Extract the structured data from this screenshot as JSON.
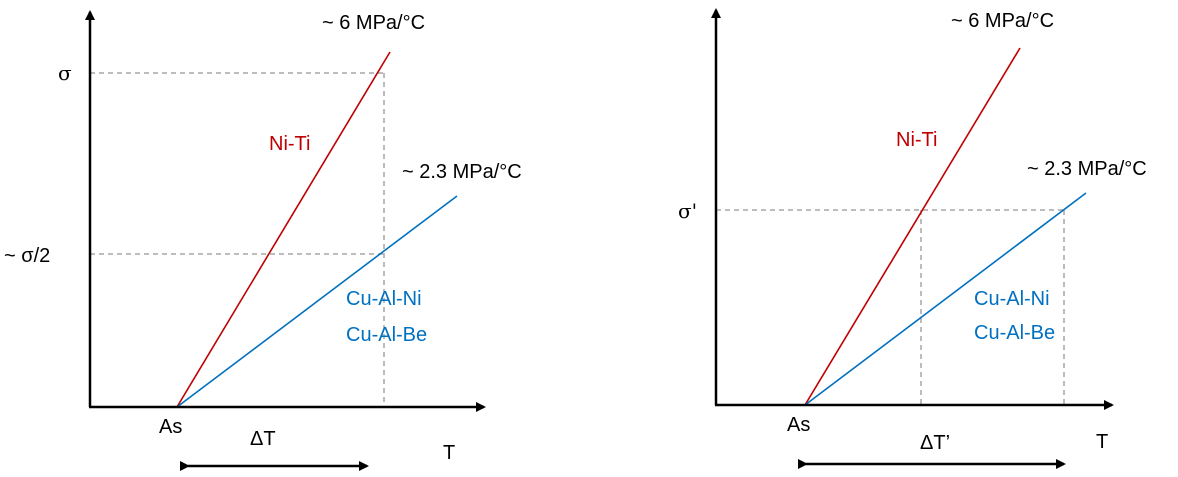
{
  "colors": {
    "niti": "#c00000",
    "cu": "#0070c0",
    "guide": "#a6a6a6",
    "axis": "#000000"
  },
  "left_panel": {
    "y_top_label": "σ",
    "y_mid_label": "~ σ/2",
    "x_label": "T",
    "origin_label": "As",
    "delta_label": "ΔT",
    "niti_label": "Ni-Ti",
    "niti_slope": "~ 6 MPa/°C",
    "cu_label_1": "Cu-Al-Ni",
    "cu_label_2": "Cu-Al-Be",
    "cu_slope": "~ 2.3 MPa/°C"
  },
  "right_panel": {
    "y_label": "σ'",
    "x_label": "T",
    "origin_label": "As",
    "delta_label": "ΔT’",
    "niti_label": "Ni-Ti",
    "niti_slope": "~ 6 MPa/°C",
    "cu_label_1": "Cu-Al-Ni",
    "cu_label_2": "Cu-Al-Be",
    "cu_slope": "~ 2.3 MPa/°C"
  }
}
